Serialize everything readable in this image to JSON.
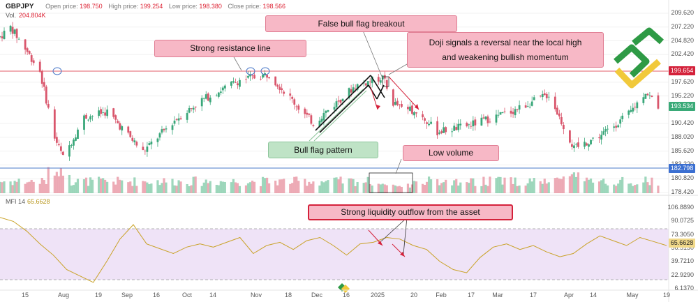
{
  "header": {
    "symbol": "GBPJPY",
    "open_label": "Open price:",
    "open_value": "198.750",
    "high_label": "High price:",
    "high_value": "199.254",
    "low_label": "Low price:",
    "low_value": "198.380",
    "close_label": "Close price:",
    "close_value": "198.566",
    "vol_label": "Vol.",
    "vol_value": "204.804K"
  },
  "mfi": {
    "label": "MFI 14",
    "value": "65.6628"
  },
  "price_axis": [
    "209.620",
    "207.220",
    "204.820",
    "202.420",
    "197.620",
    "195.220",
    "190.420",
    "188.020",
    "185.620",
    "183.220",
    "180.820",
    "178.420"
  ],
  "price_badges": {
    "resistance": "199.654",
    "last": "193.534",
    "volume_line": "182.798"
  },
  "mfi_axis": [
    "106.8890",
    "90.0725",
    "73.3050",
    "56.5130",
    "39.7210",
    "22.9290",
    "6.1370"
  ],
  "mfi_badge": "65.6628",
  "x_axis": [
    "15",
    "Aug",
    "19",
    "Sep",
    "16",
    "Oct",
    "14",
    "Nov",
    "18",
    "Dec",
    "16",
    "2025",
    "20",
    "Feb",
    "17",
    "Mar",
    "17",
    "Apr",
    "14",
    "May",
    "19"
  ],
  "annotations": {
    "resistance": "Strong resistance line",
    "false_breakout": "False bull flag breakout",
    "doji_1": "Doji signals a reversal near the local high",
    "doji_2": "and weakening bullish momentum",
    "bull_flag": "Bull flag pattern",
    "low_volume": "Low volume",
    "liquidity": "Strong liquidity outflow from the asset"
  },
  "colors": {
    "bull": "#7ec9a6",
    "bear": "#e78f9e",
    "resistance": "#e35d6a",
    "volume_line": "#4a78c8",
    "mfi_line": "#c9a227",
    "mfi_band": "#efe3f7",
    "last_badge": "#3aaa78",
    "res_badge": "#d4213a",
    "vol_badge": "#3b6fd1"
  },
  "chart_data": [
    {
      "type": "candlestick",
      "title": "GBPJPY",
      "x_range": [
        "Jul 2024",
        "May 2025"
      ],
      "ylim": [
        178.42,
        210.5
      ],
      "close_path": [
        {
          "x": "Jul 10",
          "y": 205.5
        },
        {
          "x": "Jul 15",
          "y": 207.2
        },
        {
          "x": "Jul 22",
          "y": 203.5
        },
        {
          "x": "Jul 29",
          "y": 199.5
        },
        {
          "x": "Aug 5",
          "y": 188.0
        },
        {
          "x": "Aug 9",
          "y": 184.5
        },
        {
          "x": "Aug 19",
          "y": 191.5
        },
        {
          "x": "Aug 30",
          "y": 192.5
        },
        {
          "x": "Sep 16",
          "y": 185.5
        },
        {
          "x": "Oct 1",
          "y": 191.0
        },
        {
          "x": "Oct 14",
          "y": 194.5
        },
        {
          "x": "Nov 1",
          "y": 198.0
        },
        {
          "x": "Nov 15",
          "y": 199.0
        },
        {
          "x": "Dec 2",
          "y": 192.0
        },
        {
          "x": "Dec 6",
          "y": 190.5
        },
        {
          "x": "Dec 26",
          "y": 197.0
        },
        {
          "x": "Jan 8",
          "y": 198.5
        },
        {
          "x": "Jan 13",
          "y": 194.0
        },
        {
          "x": "Jan 24",
          "y": 192.5
        },
        {
          "x": "Feb 3",
          "y": 189.0
        },
        {
          "x": "Feb 17",
          "y": 190.0
        },
        {
          "x": "Mar 10",
          "y": 192.5
        },
        {
          "x": "Mar 28",
          "y": 195.5
        },
        {
          "x": "Apr 9",
          "y": 186.0
        },
        {
          "x": "Apr 22",
          "y": 188.5
        },
        {
          "x": "May 5",
          "y": 192.0
        },
        {
          "x": "May 13",
          "y": 196.0
        },
        {
          "x": "May 19",
          "y": 193.5
        }
      ],
      "levels": {
        "resistance": 199.654,
        "last": 193.534
      }
    },
    {
      "type": "line",
      "title": "MFI 14",
      "ylim": [
        6.137,
        106.889
      ],
      "upper_band": 80,
      "lower_band": 20,
      "values": [
        95,
        90,
        78,
        62,
        48,
        30,
        22,
        14,
        40,
        68,
        86,
        62,
        56,
        50,
        58,
        62,
        58,
        64,
        70,
        50,
        60,
        64,
        55,
        66,
        70,
        60,
        48,
        62,
        64,
        70,
        68,
        60,
        55,
        40,
        30,
        26,
        45,
        58,
        62,
        55,
        60,
        52,
        46,
        50,
        62,
        72,
        66,
        60,
        70,
        65,
        60
      ]
    }
  ]
}
